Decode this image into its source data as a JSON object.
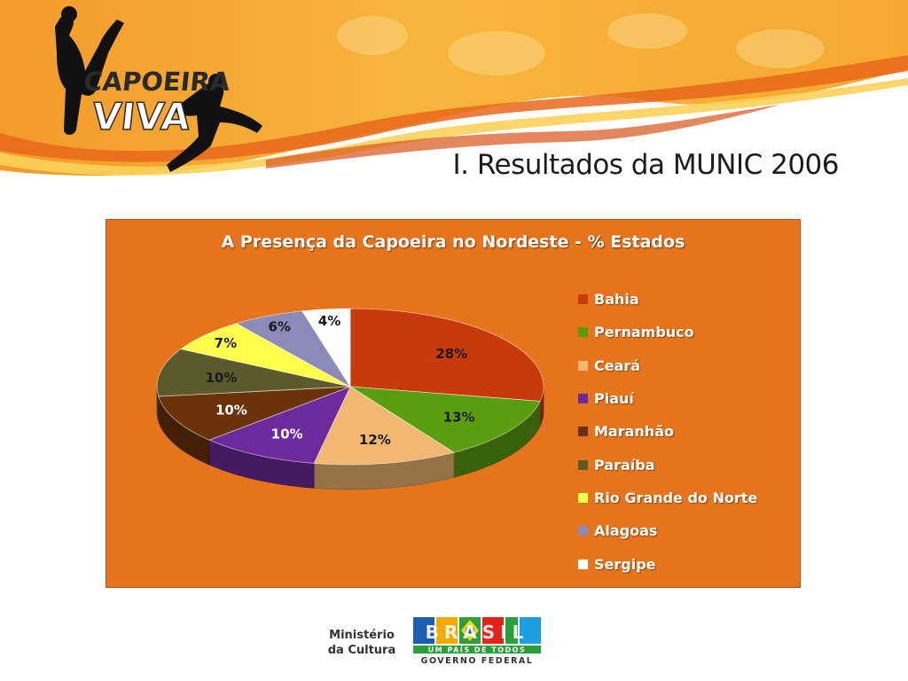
{
  "slide": {
    "title": "I. Resultados da MUNIC 2006"
  },
  "logo": {
    "line1": "CAPOEIRA",
    "line2": "VIVA"
  },
  "colors": {
    "chart_background": "#e5741c",
    "banner_orange": "#f29b2c",
    "slices": [
      "#c83a0c",
      "#5a9e10",
      "#f2b872",
      "#6e2a9c",
      "#6a3208",
      "#5c5a2a",
      "#ffff4c",
      "#8c8ab8",
      "#ffffff"
    ]
  },
  "chart_data": {
    "type": "pie",
    "title": "A Presença da Capoeira no Nordeste - % Estados",
    "categories": [
      "Bahia",
      "Pernambuco",
      "Ceará",
      "Piauí",
      "Maranhão",
      "Paraíba",
      "Rio Grande do Norte",
      "Alagoas",
      "Sergipe"
    ],
    "values": [
      28,
      13,
      12,
      10,
      10,
      10,
      7,
      6,
      4
    ],
    "labels": [
      "28%",
      "13%",
      "12%",
      "10%",
      "10%",
      "10%",
      "7%",
      "6%",
      "4%"
    ],
    "legend_position": "right"
  },
  "footer": {
    "ministerio_line1": "Ministério",
    "ministerio_line2": "da Cultura",
    "brasil_word": "BRASIL",
    "brasil_tagline": "UM PAÍS DE TODOS",
    "governo": "GOVERNO FEDERAL"
  }
}
